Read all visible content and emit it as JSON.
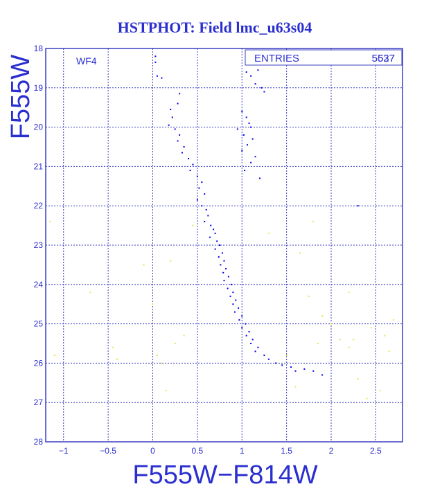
{
  "chart_data": {
    "type": "scatter",
    "title": "HSTPHOT: Field lmc_u63s04",
    "xlabel": "F555W−F814W",
    "ylabel": "F555W",
    "panel_label": "WF4",
    "stats_label": "ENTRIES",
    "entries_value": "5537",
    "entries_overlap_value": "5627",
    "xlim": [
      -1.2,
      2.8
    ],
    "ylim": [
      28,
      18
    ],
    "y_reversed": true,
    "grid": true,
    "xticks": [
      -1,
      -0.5,
      0,
      0.5,
      1,
      1.5,
      2,
      2.5
    ],
    "xtick_labels": [
      "−1",
      "−0.5",
      "0",
      "0.5",
      "1",
      "1.5",
      "2",
      "2.5"
    ],
    "yticks": [
      18,
      19,
      20,
      21,
      22,
      23,
      24,
      25,
      26,
      27,
      28
    ],
    "ytick_labels": [
      "18",
      "19",
      "20",
      "21",
      "22",
      "23",
      "24",
      "25",
      "26",
      "27",
      "28"
    ],
    "colors": {
      "frame": "#3a3fc0",
      "grid": "#3a3fc0",
      "text": "#2b2fcf",
      "main_sequence": "#0000ee",
      "field_stars": "#f0e050"
    },
    "series": [
      {
        "color": "#0000ee",
        "points": [
          [
            0.03,
            18.2
          ],
          [
            0.03,
            18.35
          ],
          [
            0.05,
            18.7
          ],
          [
            0.1,
            18.75
          ],
          [
            0.3,
            19.15
          ],
          [
            0.28,
            19.4
          ],
          [
            1.05,
            18.6
          ],
          [
            1.1,
            18.7
          ],
          [
            1.15,
            18.9
          ],
          [
            1.18,
            18.55
          ],
          [
            1.22,
            19.0
          ],
          [
            1.25,
            19.1
          ],
          [
            1.0,
            19.6
          ],
          [
            1.05,
            19.75
          ],
          [
            1.08,
            19.9
          ],
          [
            1.1,
            20.0
          ],
          [
            1.02,
            20.2
          ],
          [
            1.12,
            20.3
          ],
          [
            1.06,
            20.45
          ],
          [
            1.0,
            20.6
          ],
          [
            1.15,
            20.75
          ],
          [
            1.1,
            20.9
          ],
          [
            1.03,
            21.1
          ],
          [
            1.2,
            21.3
          ],
          [
            0.2,
            19.55
          ],
          [
            0.22,
            19.75
          ],
          [
            0.18,
            19.95
          ],
          [
            0.25,
            20.05
          ],
          [
            0.3,
            20.2
          ],
          [
            0.28,
            20.35
          ],
          [
            0.35,
            20.5
          ],
          [
            0.33,
            20.65
          ],
          [
            0.4,
            20.8
          ],
          [
            0.45,
            20.95
          ],
          [
            0.42,
            21.1
          ],
          [
            0.5,
            21.25
          ],
          [
            0.55,
            21.4
          ],
          [
            0.52,
            21.55
          ],
          [
            0.58,
            21.7
          ],
          [
            0.5,
            21.85
          ],
          [
            0.55,
            22.0
          ],
          [
            0.6,
            22.1
          ],
          [
            0.62,
            22.25
          ],
          [
            0.58,
            22.4
          ],
          [
            0.65,
            22.5
          ],
          [
            0.68,
            22.6
          ],
          [
            0.7,
            22.7
          ],
          [
            0.64,
            22.8
          ],
          [
            0.72,
            22.9
          ],
          [
            0.75,
            23.0
          ],
          [
            0.7,
            23.1
          ],
          [
            0.78,
            23.2
          ],
          [
            0.74,
            23.3
          ],
          [
            0.8,
            23.4
          ],
          [
            0.76,
            23.5
          ],
          [
            0.82,
            23.6
          ],
          [
            0.79,
            23.7
          ],
          [
            0.85,
            23.8
          ],
          [
            0.8,
            23.9
          ],
          [
            0.88,
            24.0
          ],
          [
            0.84,
            24.1
          ],
          [
            0.9,
            24.2
          ],
          [
            0.87,
            24.3
          ],
          [
            0.93,
            24.4
          ],
          [
            0.9,
            24.5
          ],
          [
            0.96,
            24.6
          ],
          [
            0.92,
            24.7
          ],
          [
            1.0,
            24.8
          ],
          [
            0.97,
            24.9
          ],
          [
            1.04,
            25.0
          ],
          [
            1.0,
            25.1
          ],
          [
            1.08,
            25.2
          ],
          [
            1.05,
            25.3
          ],
          [
            1.12,
            25.4
          ],
          [
            1.1,
            25.5
          ],
          [
            1.18,
            25.6
          ],
          [
            1.15,
            25.7
          ],
          [
            1.25,
            25.8
          ],
          [
            1.3,
            25.9
          ],
          [
            1.38,
            26.0
          ],
          [
            1.45,
            26.05
          ],
          [
            1.55,
            26.1
          ],
          [
            1.6,
            26.2
          ],
          [
            1.7,
            26.15
          ],
          [
            1.8,
            26.2
          ],
          [
            1.9,
            26.3
          ],
          [
            2.3,
            22.0
          ],
          [
            0.95,
            20.05
          ]
        ]
      },
      {
        "color": "#f0e050",
        "points": [
          [
            -1.15,
            22.4
          ],
          [
            -1.1,
            25.8
          ],
          [
            -0.7,
            24.2
          ],
          [
            -0.45,
            25.6
          ],
          [
            -0.4,
            25.9
          ],
          [
            -0.1,
            23.5
          ],
          [
            0.05,
            25.8
          ],
          [
            0.15,
            26.7
          ],
          [
            0.2,
            23.4
          ],
          [
            0.25,
            25.5
          ],
          [
            0.35,
            25.3
          ],
          [
            0.45,
            22.5
          ],
          [
            1.3,
            22.7
          ],
          [
            1.65,
            23.2
          ],
          [
            1.75,
            24.3
          ],
          [
            1.8,
            22.4
          ],
          [
            1.85,
            25.5
          ],
          [
            2.0,
            25.0
          ],
          [
            2.1,
            25.4
          ],
          [
            2.2,
            25.6
          ],
          [
            2.25,
            25.4
          ],
          [
            2.3,
            26.4
          ],
          [
            2.4,
            26.9
          ],
          [
            2.45,
            25.1
          ],
          [
            2.55,
            26.7
          ],
          [
            2.6,
            25.3
          ],
          [
            2.65,
            25.7
          ],
          [
            2.7,
            24.9
          ],
          [
            1.5,
            25.8
          ],
          [
            1.6,
            26.6
          ],
          [
            0.1,
            26.0
          ],
          [
            2.2,
            24.2
          ],
          [
            1.9,
            24.8
          ],
          [
            0.0,
            24.5
          ]
        ]
      }
    ]
  }
}
